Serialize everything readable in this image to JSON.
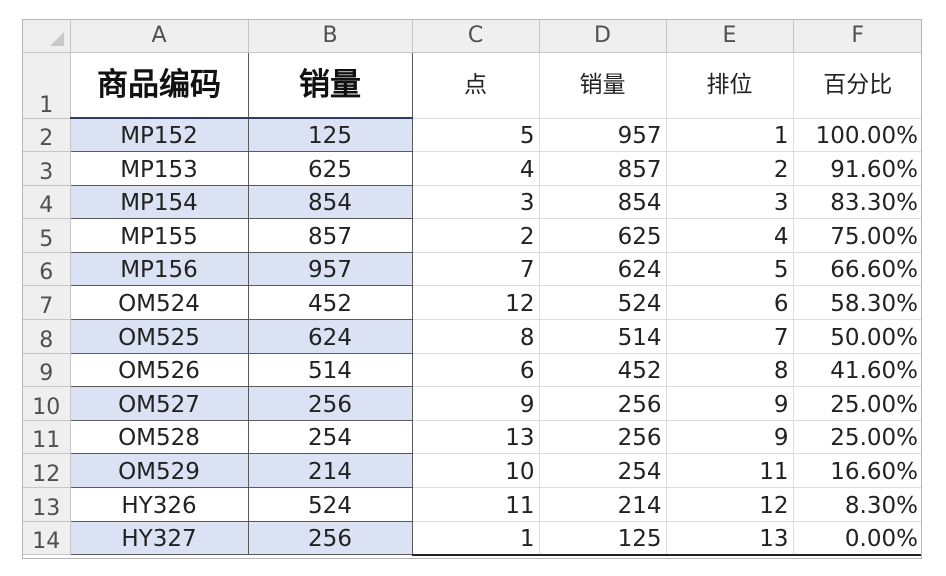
{
  "columns": [
    "A",
    "B",
    "C",
    "D",
    "E",
    "F"
  ],
  "corner_icon": "select-all-triangle-icon",
  "header_row": {
    "row_number": "1",
    "cells": [
      "商品编码",
      "销量",
      "点",
      "销量",
      "排位",
      "百分比"
    ]
  },
  "rows": [
    {
      "row": "2",
      "a": "MP152",
      "b": "125",
      "c": "5",
      "d": "957",
      "e": "1",
      "f": "100.00%"
    },
    {
      "row": "3",
      "a": "MP153",
      "b": "625",
      "c": "4",
      "d": "857",
      "e": "2",
      "f": "91.60%"
    },
    {
      "row": "4",
      "a": "MP154",
      "b": "854",
      "c": "3",
      "d": "854",
      "e": "3",
      "f": "83.30%"
    },
    {
      "row": "5",
      "a": "MP155",
      "b": "857",
      "c": "2",
      "d": "625",
      "e": "4",
      "f": "75.00%"
    },
    {
      "row": "6",
      "a": "MP156",
      "b": "957",
      "c": "7",
      "d": "624",
      "e": "5",
      "f": "66.60%"
    },
    {
      "row": "7",
      "a": "OM524",
      "b": "452",
      "c": "12",
      "d": "524",
      "e": "6",
      "f": "58.30%"
    },
    {
      "row": "8",
      "a": "OM525",
      "b": "624",
      "c": "8",
      "d": "514",
      "e": "7",
      "f": "50.00%"
    },
    {
      "row": "9",
      "a": "OM526",
      "b": "514",
      "c": "6",
      "d": "452",
      "e": "8",
      "f": "41.60%"
    },
    {
      "row": "10",
      "a": "OM527",
      "b": "256",
      "c": "9",
      "d": "256",
      "e": "9",
      "f": "25.00%"
    },
    {
      "row": "11",
      "a": "OM528",
      "b": "254",
      "c": "13",
      "d": "256",
      "e": "9",
      "f": "25.00%"
    },
    {
      "row": "12",
      "a": "OM529",
      "b": "214",
      "c": "10",
      "d": "254",
      "e": "11",
      "f": "16.60%"
    },
    {
      "row": "13",
      "a": "HY326",
      "b": "524",
      "c": "11",
      "d": "214",
      "e": "12",
      "f": "8.30%"
    },
    {
      "row": "14",
      "a": "HY327",
      "b": "256",
      "c": "1",
      "d": "125",
      "e": "13",
      "f": "0.00%"
    }
  ],
  "colors": {
    "shaded_fill": "#dae2f3",
    "header_underline": "#2d3c6b",
    "grid_header_bg": "#efefef"
  }
}
